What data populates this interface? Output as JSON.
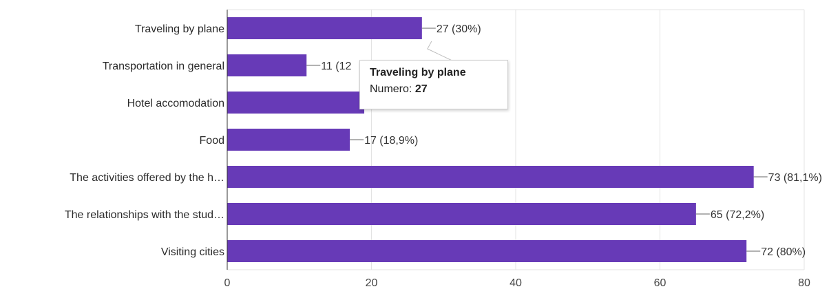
{
  "chart_data": {
    "type": "bar",
    "orientation": "horizontal",
    "categories": [
      "Traveling by plane",
      "Transportation in general",
      "Hotel accomodation",
      "Food",
      "The activities offered by the h…",
      "The relationships with the stud…",
      "Visiting cities"
    ],
    "values": [
      27,
      11,
      19,
      17,
      73,
      65,
      72
    ],
    "data_labels": [
      "27 (30%)",
      "11 (12",
      "",
      "17 (18,9%)",
      "73 (81,1%)",
      "65 (72,2%)",
      "72 (80%)"
    ],
    "xlim": [
      0,
      80
    ],
    "xticks": [
      0,
      20,
      40,
      60,
      80
    ],
    "grid": true,
    "bar_color": "#673ab7",
    "title": "",
    "xlabel": "",
    "ylabel": ""
  },
  "tooltip": {
    "title": "Traveling by plane",
    "label": "Numero:",
    "value": "27"
  }
}
